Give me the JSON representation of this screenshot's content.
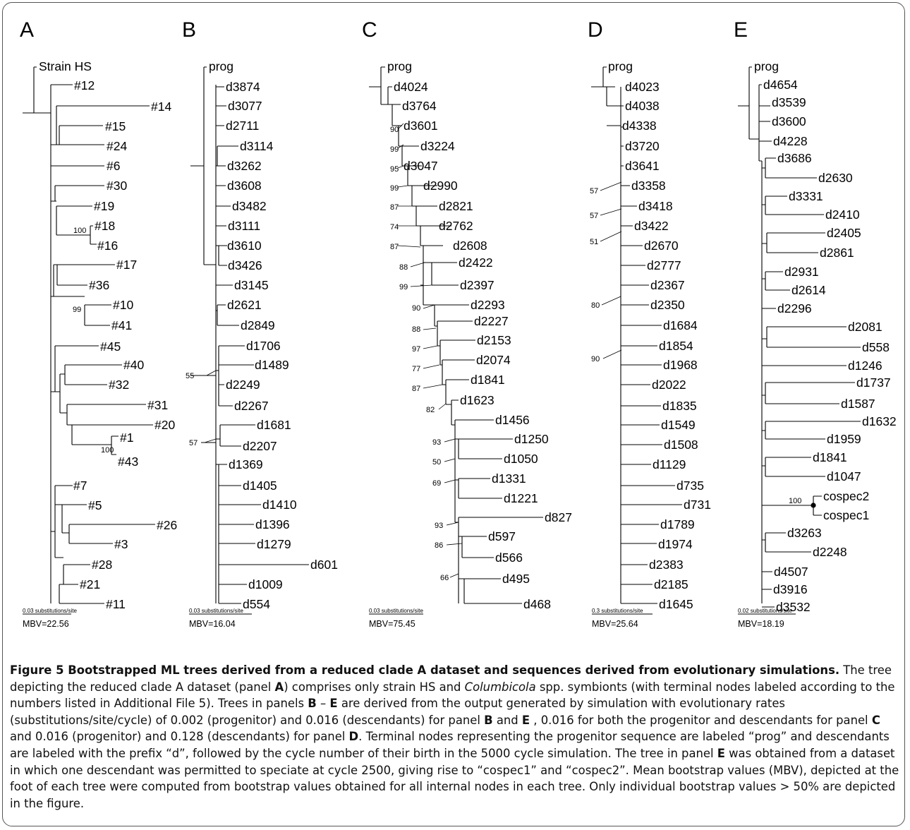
{
  "panels": [
    {
      "letter": "A",
      "scale_label": "0.03 substitutions/site",
      "mbv": "MBV=22.56",
      "root": "Strain HS",
      "leaves": [
        "#12",
        "#14",
        "#15",
        "#24",
        "#6",
        "#30",
        "#19",
        "#18",
        "#16",
        "#17",
        "#36",
        "#10",
        "#41",
        "#45",
        "#40",
        "#32",
        "#31",
        "#20",
        "#1",
        "#43",
        "#7",
        "#5",
        "#26",
        "#3",
        "#28",
        "#21",
        "#11"
      ],
      "bootstraps": [
        "100",
        "99",
        "100"
      ]
    },
    {
      "letter": "B",
      "scale_label": "0.03 substitutions/site",
      "mbv": "MBV=16.04",
      "root": "prog",
      "leaves": [
        "d3874",
        "d3077",
        "d2711",
        "d3114",
        "d3262",
        "d3608",
        "d3482",
        "d3111",
        "d3610",
        "d3426",
        "d3145",
        "d2621",
        "d2849",
        "d1706",
        "d1489",
        "d2249",
        "d2267",
        "d1681",
        "d2207",
        "d1369",
        "d1405",
        "d1410",
        "d1396",
        "d1279",
        "d601",
        "d1009",
        "d554"
      ],
      "bootstraps": [
        "55",
        "57"
      ]
    },
    {
      "letter": "C",
      "scale_label": "0.03 substitutions/site",
      "mbv": "MBV=75.45",
      "root": "prog",
      "leaves": [
        "d4024",
        "d3764",
        "d3601",
        "d3224",
        "d3047",
        "d2990",
        "d2821",
        "d2762",
        "d2608",
        "d2422",
        "d2397",
        "d2293",
        "d2227",
        "d2153",
        "d2074",
        "d1841",
        "d1623",
        "d1456",
        "d1250",
        "d1050",
        "d1331",
        "d1221",
        "d827",
        "d597",
        "d566",
        "d495",
        "d468"
      ],
      "bootstraps": [
        "90",
        "99",
        "95",
        "99",
        "87",
        "74",
        "87",
        "88",
        "99",
        "90",
        "88",
        "97",
        "77",
        "87",
        "82",
        "93",
        "50",
        "69",
        "93",
        "86",
        "66"
      ]
    },
    {
      "letter": "D",
      "scale_label": "0.3 substitutions/site",
      "mbv": "MBV=25.64",
      "root": "prog",
      "leaves": [
        "d4023",
        "d4038",
        "d4338",
        "d3720",
        "d3641",
        "d3358",
        "d3418",
        "d3422",
        "d2670",
        "d2777",
        "d2367",
        "d2350",
        "d1684",
        "d1854",
        "d1968",
        "d2022",
        "d1835",
        "d1549",
        "d1508",
        "d1129",
        "d735",
        "d731",
        "d1789",
        "d1974",
        "d2383",
        "d2185",
        "d1645"
      ],
      "bootstraps": [
        "57",
        "57",
        "51",
        "80",
        "90"
      ]
    },
    {
      "letter": "E",
      "scale_label": "0.02 substitutions/site",
      "mbv": "MBV=18.19",
      "root": "prog",
      "leaves": [
        "d4654",
        "d3539",
        "d3600",
        "d4228",
        "d3686",
        "d2630",
        "d3331",
        "d2410",
        "d2405",
        "d2861",
        "d2931",
        "d2614",
        "d2296",
        "d2081",
        "d558",
        "d1246",
        "d1737",
        "d1587",
        "d1632",
        "d1959",
        "d1841",
        "d1047",
        "cospec2",
        "cospec1",
        "d3263",
        "d2248",
        "d4507",
        "d3916",
        "d3532"
      ],
      "bootstraps": [
        "100"
      ]
    }
  ],
  "caption": {
    "title": "Figure 5 Bootstrapped ML trees derived from a reduced clade A dataset and sequences derived from evolutionary simulations.",
    "s1": " The tree depicting the reduced clade A dataset (panel ",
    "p1": "A",
    "s2": ") comprises only strain HS and ",
    "italic1": "Columbicola",
    "s3": " spp. symbionts (with terminal nodes labeled according to the numbers listed in Additional File 5). Trees in panels ",
    "p2": "B",
    "s4": " – ",
    "p3": "E",
    "s5": " are derived from the output generated by simulation with evolutionary rates (substitutions/site/cycle) of 0.002 (progenitor) and 0.016 (descendants) for panel ",
    "p4": "B",
    "s6": " and ",
    "p5": "E",
    "s7": " , 0.016 for both the progenitor and descendants for panel ",
    "p6": "C",
    "s8": " and 0.016 (progenitor) and 0.128 (descendants) for panel ",
    "p7": "D",
    "s9": ". Terminal nodes representing the progenitor sequence are labeled “prog” and descendants are labeled with the prefix “d”, followed by the cycle number of their birth in the 5000 cycle simulation. The tree in panel ",
    "p8": "E",
    "s10": " was obtained from a dataset in which one descendant was permitted to speciate at cycle 2500, giving rise to “cospec1” and “cospec2”. Mean bootstrap values (MBV), depicted at the foot of each tree were computed from bootstrap values obtained for all internal nodes in each tree. Only individual bootstrap values > 50% are depicted in the figure."
  }
}
